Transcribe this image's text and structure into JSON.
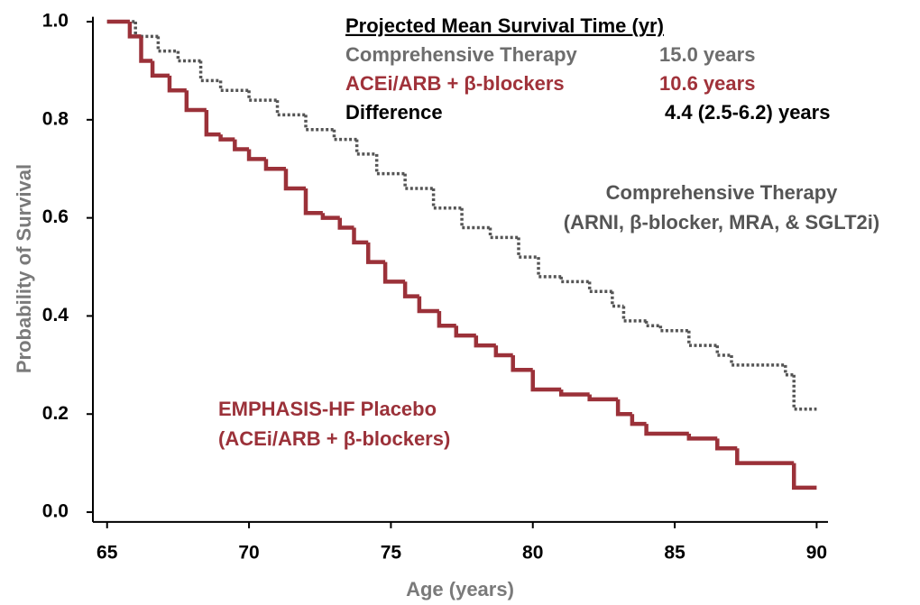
{
  "chart_data": {
    "type": "step",
    "x_label": "Age (years)",
    "y_label": "Probability of Survival",
    "xlim": [
      64.5,
      90.4
    ],
    "ylim": [
      -0.02,
      1.01
    ],
    "xticks": [
      65,
      70,
      75,
      80,
      85,
      90
    ],
    "yticks": [
      {
        "value": 0,
        "label": "0.0"
      },
      0.2,
      0.4,
      0.6,
      0.8,
      {
        "value": 1,
        "label": "1.0"
      }
    ],
    "series": [
      {
        "name": "Comprehensive Therapy",
        "subname": "(ARNI, β-blocker, MRA, & SGLT2i)",
        "color": "#555555",
        "dashed": true,
        "x": [
          65,
          66,
          66.8,
          67.5,
          68.3,
          69,
          70,
          71,
          72,
          73,
          73.8,
          74.5,
          75.5,
          76.5,
          77.5,
          78.5,
          79.5,
          80.2,
          81,
          82,
          82.8,
          83.2,
          84,
          84.5,
          85.5,
          86.5,
          87,
          88.9,
          89.2,
          90
        ],
        "values": [
          1.0,
          0.97,
          0.94,
          0.92,
          0.88,
          0.86,
          0.84,
          0.81,
          0.78,
          0.76,
          0.73,
          0.69,
          0.66,
          0.62,
          0.58,
          0.56,
          0.52,
          0.48,
          0.47,
          0.45,
          0.42,
          0.39,
          0.38,
          0.37,
          0.34,
          0.32,
          0.3,
          0.28,
          0.21,
          0.21
        ]
      },
      {
        "name": "EMPHASIS-HF Placebo",
        "subname": "(ACEi/ARB + β-blockers)",
        "color": "#9b3139",
        "dashed": false,
        "x": [
          65,
          65.8,
          66.2,
          66.6,
          67.2,
          67.8,
          68.5,
          69,
          69.5,
          70,
          70.6,
          71.3,
          72,
          72.6,
          73.2,
          73.7,
          74.2,
          74.8,
          75.5,
          76,
          76.7,
          77.3,
          78,
          78.7,
          79.3,
          80,
          81,
          82,
          83,
          83.5,
          84,
          85.5,
          86.5,
          87.2,
          89.2,
          90
        ],
        "values": [
          1.0,
          0.97,
          0.92,
          0.89,
          0.86,
          0.82,
          0.77,
          0.76,
          0.74,
          0.72,
          0.7,
          0.66,
          0.61,
          0.6,
          0.58,
          0.55,
          0.51,
          0.47,
          0.44,
          0.41,
          0.38,
          0.36,
          0.34,
          0.32,
          0.29,
          0.25,
          0.24,
          0.23,
          0.2,
          0.18,
          0.16,
          0.15,
          0.13,
          0.1,
          0.05,
          0.05
        ]
      }
    ],
    "summary": {
      "title": "Projected Mean Survival Time (yr)",
      "rows": [
        {
          "label": "Comprehensive Therapy",
          "value": "15.0 years",
          "color": "#6d6d6d"
        },
        {
          "label": "ACEi/ARB + β-blockers",
          "value": "10.6 years",
          "color": "#a0323a"
        },
        {
          "label": "Difference",
          "value": "4.4 (2.5-6.2) years",
          "color": "#000000"
        }
      ]
    }
  }
}
